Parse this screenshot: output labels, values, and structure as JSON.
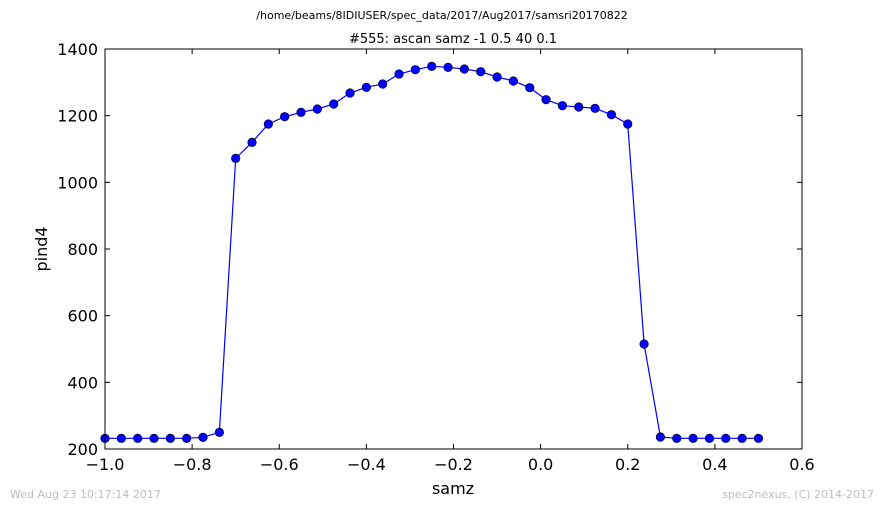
{
  "suptitle": "/home/beams/8IDIUSER/spec_data/2017/Aug2017/samsri20170822",
  "footer": {
    "left": "Wed Aug 23 10:17:14 2017",
    "right": "spec2nexus, (C) 2014-2017"
  },
  "chart_data": {
    "type": "line",
    "title": "#555: ascan  samz -1 0.5  40 0.1",
    "xlabel": "samz",
    "ylabel": "pind4",
    "xlim": [
      -1.0,
      0.6
    ],
    "ylim": [
      200,
      1400
    ],
    "xticks": [
      -1.0,
      -0.8,
      -0.6,
      -0.4,
      -0.2,
      0.0,
      0.2,
      0.4,
      0.6
    ],
    "xtick_labels": [
      "−1.0",
      "−0.8",
      "−0.6",
      "−0.4",
      "−0.2",
      "0.0",
      "0.2",
      "0.4",
      "0.6"
    ],
    "yticks": [
      200,
      400,
      600,
      800,
      1000,
      1200,
      1400
    ],
    "ytick_labels": [
      "200",
      "400",
      "600",
      "800",
      "1000",
      "1200",
      "1400"
    ],
    "grid": false,
    "series": [
      {
        "color": "#0000ff",
        "marker": "circle",
        "x": [
          -1.0,
          -0.9625,
          -0.925,
          -0.8875,
          -0.85,
          -0.8125,
          -0.775,
          -0.7375,
          -0.7,
          -0.6625,
          -0.625,
          -0.5875,
          -0.55,
          -0.5125,
          -0.475,
          -0.4375,
          -0.4,
          -0.3625,
          -0.325,
          -0.2875,
          -0.25,
          -0.2125,
          -0.175,
          -0.1375,
          -0.1,
          -0.0625,
          -0.025,
          0.0125,
          0.05,
          0.0875,
          0.125,
          0.1625,
          0.2,
          0.2375,
          0.275,
          0.3125,
          0.35,
          0.3875,
          0.425,
          0.4625,
          0.5
        ],
        "y": [
          232,
          232,
          232,
          232,
          232,
          232,
          235,
          250,
          1072,
          1120,
          1175,
          1197,
          1210,
          1220,
          1235,
          1268,
          1285,
          1295,
          1325,
          1338,
          1348,
          1345,
          1340,
          1332,
          1316,
          1304,
          1284,
          1248,
          1230,
          1226,
          1222,
          1203,
          1175,
          515,
          236,
          232,
          232,
          232,
          232,
          232,
          232
        ]
      }
    ]
  }
}
